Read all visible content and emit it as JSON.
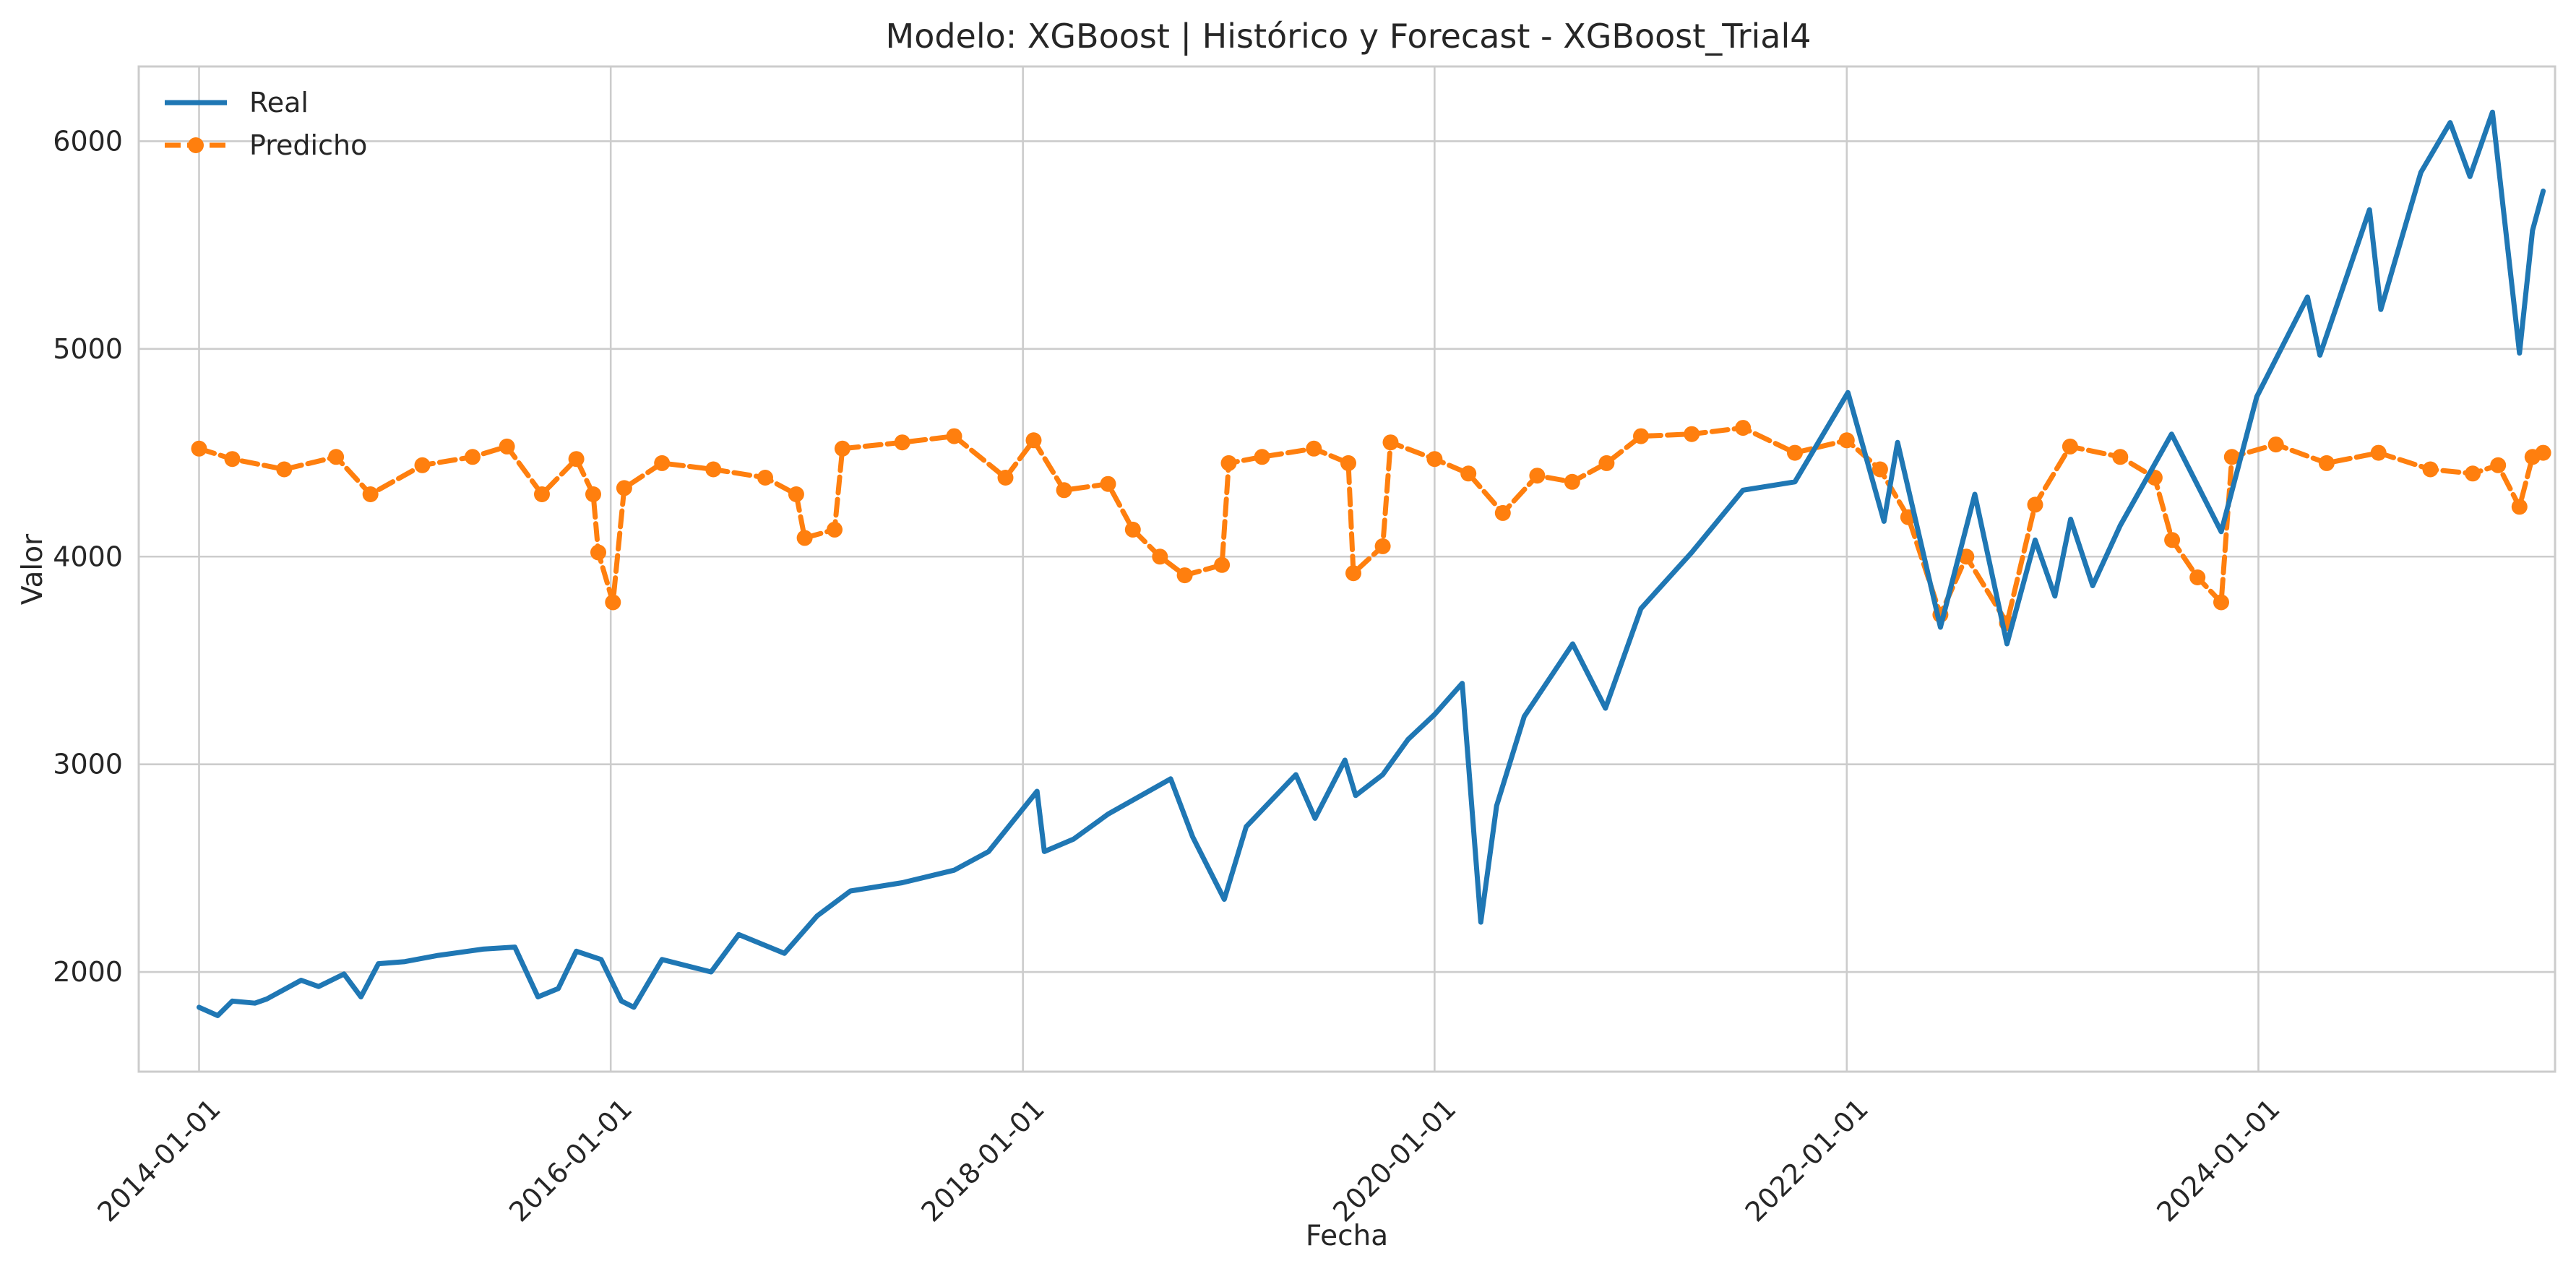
{
  "chart_data": {
    "type": "line",
    "title": "Modelo: XGBoost | Histórico y Forecast - XGBoost_Trial4",
    "xlabel": "Fecha",
    "ylabel": "Valor",
    "x_axis_type": "date",
    "xlim": [
      "2013-09-16",
      "2025-06-10"
    ],
    "ylim": [
      1520,
      6360
    ],
    "grid": true,
    "legend_position": "top-left",
    "x_ticks": [
      "2014-01-01",
      "2016-01-01",
      "2018-01-01",
      "2020-01-01",
      "2022-01-01",
      "2024-01-01"
    ],
    "y_ticks": [
      2000,
      3000,
      4000,
      5000,
      6000
    ],
    "series": [
      {
        "name": "Real",
        "color": "#1f77b4",
        "style": "solid",
        "points": [
          [
            "2014-01-01",
            1830
          ],
          [
            "2014-02-03",
            1790
          ],
          [
            "2014-03-01",
            1860
          ],
          [
            "2014-04-10",
            1850
          ],
          [
            "2014-05-01",
            1870
          ],
          [
            "2014-07-01",
            1960
          ],
          [
            "2014-08-01",
            1930
          ],
          [
            "2014-09-15",
            1990
          ],
          [
            "2014-10-15",
            1880
          ],
          [
            "2014-11-15",
            2040
          ],
          [
            "2015-01-01",
            2050
          ],
          [
            "2015-03-01",
            2080
          ],
          [
            "2015-05-20",
            2110
          ],
          [
            "2015-07-15",
            2120
          ],
          [
            "2015-08-25",
            1880
          ],
          [
            "2015-09-30",
            1920
          ],
          [
            "2015-11-01",
            2100
          ],
          [
            "2015-12-15",
            2060
          ],
          [
            "2016-01-20",
            1860
          ],
          [
            "2016-02-11",
            1830
          ],
          [
            "2016-04-01",
            2060
          ],
          [
            "2016-06-27",
            2000
          ],
          [
            "2016-08-15",
            2180
          ],
          [
            "2016-11-04",
            2090
          ],
          [
            "2017-01-01",
            2270
          ],
          [
            "2017-03-01",
            2390
          ],
          [
            "2017-06-01",
            2430
          ],
          [
            "2017-09-01",
            2490
          ],
          [
            "2017-11-01",
            2580
          ],
          [
            "2018-01-26",
            2870
          ],
          [
            "2018-02-08",
            2580
          ],
          [
            "2018-04-01",
            2640
          ],
          [
            "2018-06-01",
            2760
          ],
          [
            "2018-09-20",
            2930
          ],
          [
            "2018-10-29",
            2650
          ],
          [
            "2018-12-24",
            2350
          ],
          [
            "2019-02-01",
            2700
          ],
          [
            "2019-04-30",
            2950
          ],
          [
            "2019-06-03",
            2740
          ],
          [
            "2019-07-26",
            3020
          ],
          [
            "2019-08-14",
            2850
          ],
          [
            "2019-10-01",
            2950
          ],
          [
            "2019-11-15",
            3120
          ],
          [
            "2020-01-01",
            3240
          ],
          [
            "2020-02-19",
            3390
          ],
          [
            "2020-03-23",
            2240
          ],
          [
            "2020-04-20",
            2800
          ],
          [
            "2020-06-08",
            3230
          ],
          [
            "2020-09-02",
            3580
          ],
          [
            "2020-10-30",
            3270
          ],
          [
            "2021-01-01",
            3750
          ],
          [
            "2021-04-01",
            4020
          ],
          [
            "2021-07-01",
            4320
          ],
          [
            "2021-10-01",
            4360
          ],
          [
            "2022-01-03",
            4790
          ],
          [
            "2022-03-08",
            4170
          ],
          [
            "2022-04-01",
            4550
          ],
          [
            "2022-06-16",
            3660
          ],
          [
            "2022-08-16",
            4300
          ],
          [
            "2022-10-12",
            3580
          ],
          [
            "2022-12-01",
            4080
          ],
          [
            "2023-01-05",
            3810
          ],
          [
            "2023-02-02",
            4180
          ],
          [
            "2023-03-13",
            3860
          ],
          [
            "2023-05-01",
            4150
          ],
          [
            "2023-07-31",
            4590
          ],
          [
            "2023-10-27",
            4120
          ],
          [
            "2023-12-29",
            4770
          ],
          [
            "2024-03-28",
            5250
          ],
          [
            "2024-04-19",
            4970
          ],
          [
            "2024-07-16",
            5670
          ],
          [
            "2024-08-05",
            5190
          ],
          [
            "2024-10-15",
            5850
          ],
          [
            "2024-12-06",
            6090
          ],
          [
            "2025-01-10",
            5830
          ],
          [
            "2025-02-19",
            6140
          ],
          [
            "2025-04-08",
            4980
          ],
          [
            "2025-05-01",
            5570
          ],
          [
            "2025-05-20",
            5760
          ]
        ]
      },
      {
        "name": "Predicho",
        "color": "#ff7f0e",
        "style": "dashed",
        "marker": "circle",
        "points": [
          [
            "2014-01-01",
            4520
          ],
          [
            "2014-03-01",
            4470
          ],
          [
            "2014-06-01",
            4420
          ],
          [
            "2014-09-01",
            4480
          ],
          [
            "2014-11-01",
            4300
          ],
          [
            "2015-02-01",
            4440
          ],
          [
            "2015-05-01",
            4480
          ],
          [
            "2015-07-01",
            4530
          ],
          [
            "2015-09-01",
            4300
          ],
          [
            "2015-11-01",
            4470
          ],
          [
            "2015-12-01",
            4300
          ],
          [
            "2015-12-10",
            4020
          ],
          [
            "2016-01-05",
            3780
          ],
          [
            "2016-01-25",
            4330
          ],
          [
            "2016-04-01",
            4450
          ],
          [
            "2016-07-01",
            4420
          ],
          [
            "2016-10-01",
            4380
          ],
          [
            "2016-11-25",
            4300
          ],
          [
            "2016-12-10",
            4090
          ],
          [
            "2017-02-01",
            4130
          ],
          [
            "2017-02-15",
            4520
          ],
          [
            "2017-06-01",
            4550
          ],
          [
            "2017-09-01",
            4580
          ],
          [
            "2017-12-01",
            4380
          ],
          [
            "2018-01-20",
            4560
          ],
          [
            "2018-03-15",
            4320
          ],
          [
            "2018-06-01",
            4350
          ],
          [
            "2018-07-15",
            4130
          ],
          [
            "2018-09-01",
            4000
          ],
          [
            "2018-10-15",
            3910
          ],
          [
            "2018-12-20",
            3960
          ],
          [
            "2019-01-01",
            4450
          ],
          [
            "2019-03-01",
            4480
          ],
          [
            "2019-06-01",
            4520
          ],
          [
            "2019-08-01",
            4450
          ],
          [
            "2019-08-10",
            3920
          ],
          [
            "2019-10-01",
            4050
          ],
          [
            "2019-10-15",
            4550
          ],
          [
            "2020-01-01",
            4470
          ],
          [
            "2020-03-01",
            4400
          ],
          [
            "2020-05-01",
            4210
          ],
          [
            "2020-07-01",
            4390
          ],
          [
            "2020-09-01",
            4360
          ],
          [
            "2020-11-01",
            4450
          ],
          [
            "2021-01-01",
            4580
          ],
          [
            "2021-04-01",
            4590
          ],
          [
            "2021-07-01",
            4620
          ],
          [
            "2021-10-01",
            4500
          ],
          [
            "2022-01-01",
            4560
          ],
          [
            "2022-03-01",
            4420
          ],
          [
            "2022-04-20",
            4190
          ],
          [
            "2022-06-16",
            3720
          ],
          [
            "2022-08-01",
            4000
          ],
          [
            "2022-10-12",
            3680
          ],
          [
            "2022-12-01",
            4250
          ],
          [
            "2023-02-01",
            4530
          ],
          [
            "2023-05-01",
            4480
          ],
          [
            "2023-07-01",
            4380
          ],
          [
            "2023-08-01",
            4080
          ],
          [
            "2023-09-15",
            3900
          ],
          [
            "2023-10-27",
            3780
          ],
          [
            "2023-11-15",
            4480
          ],
          [
            "2024-02-01",
            4540
          ],
          [
            "2024-05-01",
            4450
          ],
          [
            "2024-08-01",
            4500
          ],
          [
            "2024-11-01",
            4420
          ],
          [
            "2025-01-15",
            4400
          ],
          [
            "2025-03-01",
            4440
          ],
          [
            "2025-04-08",
            4240
          ],
          [
            "2025-05-01",
            4480
          ],
          [
            "2025-05-20",
            4500
          ]
        ]
      }
    ]
  }
}
